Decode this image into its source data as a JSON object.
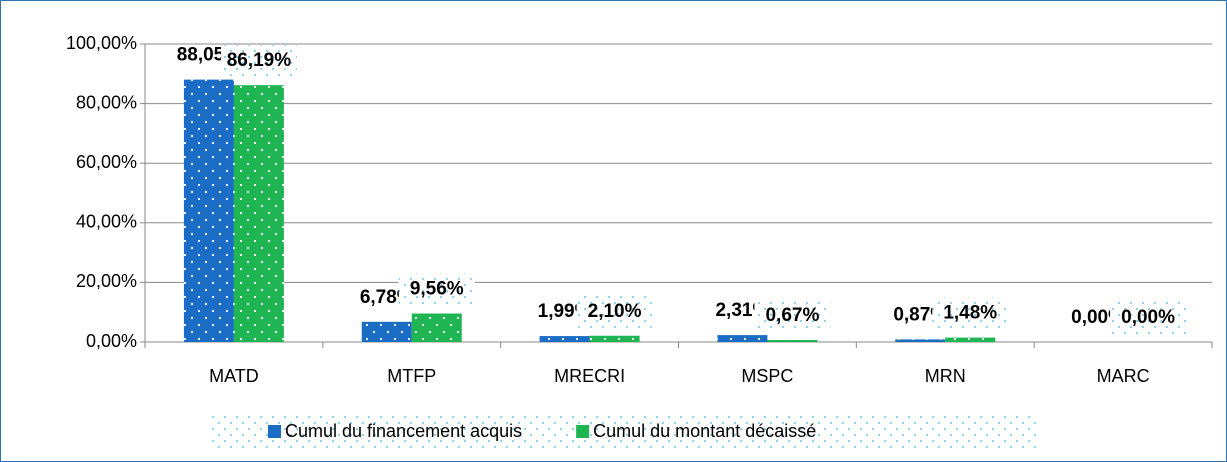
{
  "chart_data": {
    "type": "bar",
    "categories": [
      "MATD",
      "MTFP",
      "MRECRI",
      "MSPC",
      "MRN",
      "MARC"
    ],
    "series": [
      {
        "name": "Cumul du financement acquis",
        "color": "#1a6cc4",
        "values": [
          88.05,
          6.78,
          1.99,
          2.31,
          0.87,
          0.0
        ],
        "value_labels": [
          "88,05%",
          "6,78%",
          "1,99%",
          "2,31%",
          "0,87%",
          "0,00%"
        ]
      },
      {
        "name": "Cumul du montant décaissé",
        "color": "#1fb553",
        "values": [
          86.19,
          9.56,
          2.1,
          0.67,
          1.48,
          0.0
        ],
        "value_labels": [
          "86,19%",
          "9,56%",
          "2,10%",
          "0,67%",
          "1,48%",
          "0,00%"
        ]
      }
    ],
    "ylim": [
      0,
      100
    ],
    "yticks": [
      {
        "value": 0,
        "label": "0,00%"
      },
      {
        "value": 20,
        "label": "20,00%"
      },
      {
        "value": 40,
        "label": "40,00%"
      },
      {
        "value": 60,
        "label": "60,00%"
      },
      {
        "value": 80,
        "label": "80,00%"
      },
      {
        "value": 100,
        "label": "100,00%"
      }
    ],
    "grid": true,
    "legend": "bottom"
  }
}
